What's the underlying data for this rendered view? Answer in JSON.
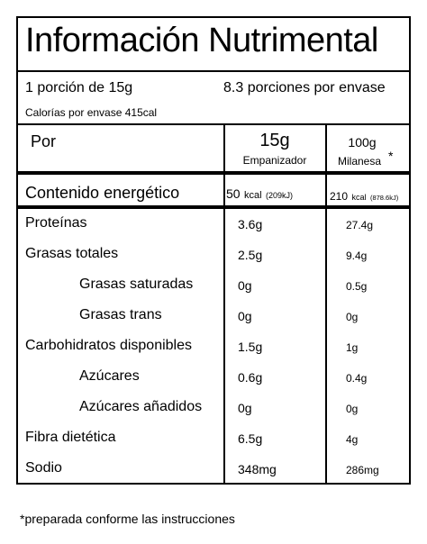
{
  "title": "Información Nutrimental",
  "serving": {
    "portion": "1 porción de 15g",
    "portions_per_pack": "8.3 porciones por envase",
    "calories_per_pack": "Calorías por envase 415cal"
  },
  "header": {
    "por_label": "Por",
    "col1_amount": "15g",
    "col1_name": "Empanizador",
    "col2_amount": "100g",
    "col2_name": "Milanesa",
    "asterisk": "*"
  },
  "energy": {
    "label": "Contenido energético",
    "col1_kcal": "50",
    "col1_unit": "kcal",
    "col1_kj": "(209kJ)",
    "col2_kcal": "210",
    "col2_unit": "kcal",
    "col2_kj": "(878.6kJ)"
  },
  "rows": [
    {
      "label": "Proteínas",
      "v1": "3.6g",
      "v2": "27.4g"
    },
    {
      "label": "Grasas totales",
      "v1": "2.5g",
      "v2": "9.4g"
    },
    {
      "label": "Grasas saturadas",
      "v1": "0g",
      "v2": "0.5g"
    },
    {
      "label": "Grasas trans",
      "v1": "0g",
      "v2": "0g"
    },
    {
      "label": "Carbohidratos disponibles",
      "v1": "1.5g",
      "v2": "1g"
    },
    {
      "label": "Azúcares",
      "v1": "0.6g",
      "v2": "0.4g"
    },
    {
      "label": "Azúcares añadidos",
      "v1": "0g",
      "v2": "0g"
    },
    {
      "label": "Fibra dietética",
      "v1": "6.5g",
      "v2": "4g"
    },
    {
      "label": "Sodio",
      "v1": "348mg",
      "v2": "286mg"
    }
  ],
  "footnote": "*preparada conforme las instrucciones"
}
